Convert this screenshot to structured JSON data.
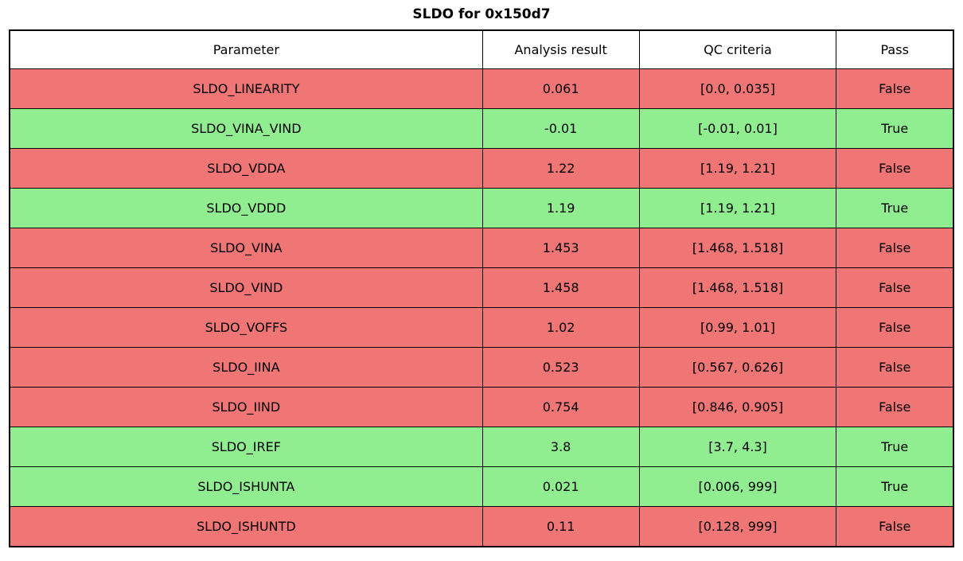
{
  "title": "SLDO for 0x150d7",
  "colors": {
    "pass_row": "#90ee90",
    "fail_row": "#f07575",
    "border": "#000000",
    "header_bg": "#ffffff"
  },
  "chart_data": {
    "type": "table",
    "title": "SLDO for 0x150d7",
    "columns": [
      "Parameter",
      "Analysis result",
      "QC criteria",
      "Pass"
    ],
    "rows": [
      {
        "parameter": "SLDO_LINEARITY",
        "result": "0.061",
        "criteria": "[0.0, 0.035]",
        "passed": "False",
        "status": "fail"
      },
      {
        "parameter": "SLDO_VINA_VIND",
        "result": "-0.01",
        "criteria": "[-0.01, 0.01]",
        "passed": "True",
        "status": "pass"
      },
      {
        "parameter": "SLDO_VDDA",
        "result": "1.22",
        "criteria": "[1.19, 1.21]",
        "passed": "False",
        "status": "fail"
      },
      {
        "parameter": "SLDO_VDDD",
        "result": "1.19",
        "criteria": "[1.19, 1.21]",
        "passed": "True",
        "status": "pass"
      },
      {
        "parameter": "SLDO_VINA",
        "result": "1.453",
        "criteria": "[1.468, 1.518]",
        "passed": "False",
        "status": "fail"
      },
      {
        "parameter": "SLDO_VIND",
        "result": "1.458",
        "criteria": "[1.468, 1.518]",
        "passed": "False",
        "status": "fail"
      },
      {
        "parameter": "SLDO_VOFFS",
        "result": "1.02",
        "criteria": "[0.99, 1.01]",
        "passed": "False",
        "status": "fail"
      },
      {
        "parameter": "SLDO_IINA",
        "result": "0.523",
        "criteria": "[0.567, 0.626]",
        "passed": "False",
        "status": "fail"
      },
      {
        "parameter": "SLDO_IIND",
        "result": "0.754",
        "criteria": "[0.846, 0.905]",
        "passed": "False",
        "status": "fail"
      },
      {
        "parameter": "SLDO_IREF",
        "result": "3.8",
        "criteria": "[3.7, 4.3]",
        "passed": "True",
        "status": "pass"
      },
      {
        "parameter": "SLDO_ISHUNTA",
        "result": "0.021",
        "criteria": "[0.006, 999]",
        "passed": "True",
        "status": "pass"
      },
      {
        "parameter": "SLDO_ISHUNTD",
        "result": "0.11",
        "criteria": "[0.128, 999]",
        "passed": "False",
        "status": "fail"
      }
    ]
  }
}
